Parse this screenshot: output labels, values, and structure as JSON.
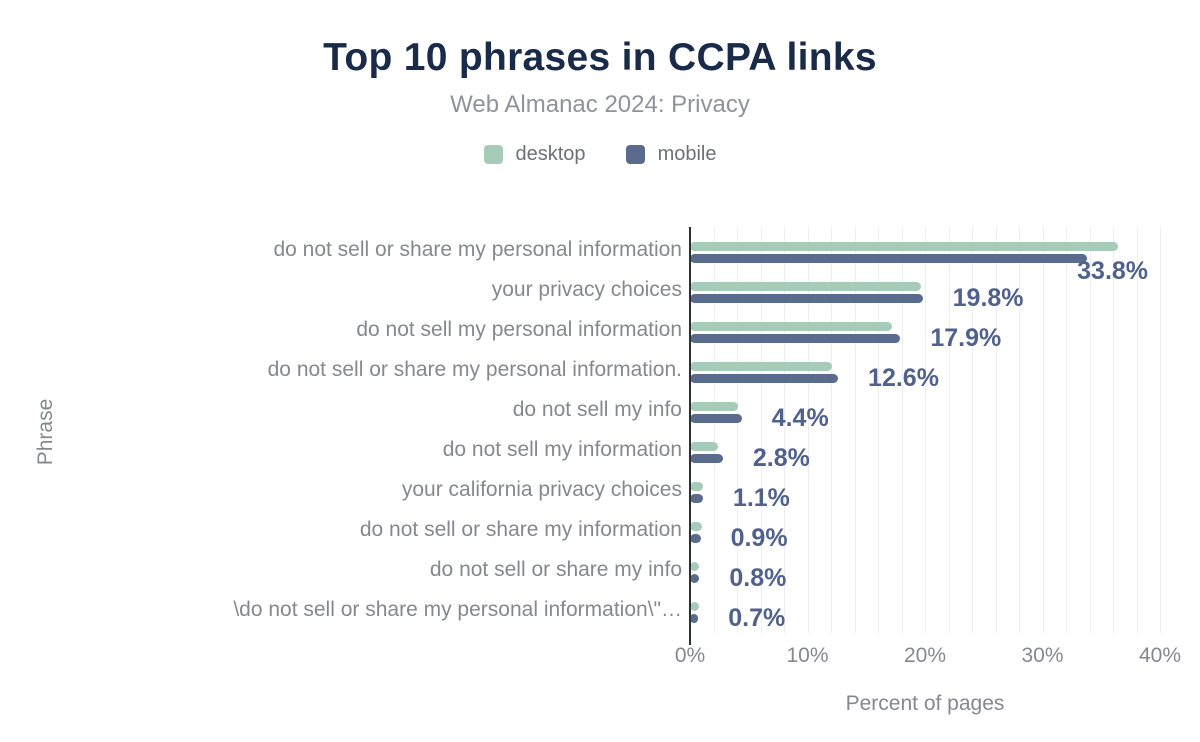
{
  "chart_data": {
    "type": "bar",
    "orientation": "horizontal",
    "title": "Top 10 phrases in CCPA links",
    "subtitle": "Web Almanac 2024: Privacy",
    "xlabel": "Percent of pages",
    "ylabel": "Phrase",
    "xlim": [
      0,
      40
    ],
    "x_ticks": [
      {
        "value": 0,
        "label": "0%"
      },
      {
        "value": 10,
        "label": "10%"
      },
      {
        "value": 20,
        "label": "20%"
      },
      {
        "value": 30,
        "label": "30%"
      },
      {
        "value": 40,
        "label": "40%"
      }
    ],
    "gridline_step_pct": 2,
    "grid": true,
    "legend_position": "top",
    "categories": [
      "do not sell or share my personal information",
      "your privacy choices",
      "do not sell my personal information",
      "do not sell or share my personal information.",
      "do not sell my info",
      "do not sell my information",
      "your california privacy choices",
      "do not sell or share my information",
      "do not sell or share my info",
      "\\do not sell or share my personal information\\\"…"
    ],
    "series": [
      {
        "name": "desktop",
        "color": "#a7cbb9",
        "values": [
          36.4,
          19.7,
          17.2,
          12.1,
          4.1,
          2.4,
          1.1,
          1.0,
          0.8,
          0.8
        ]
      },
      {
        "name": "mobile",
        "color": "#5a6b8e",
        "values": [
          33.8,
          19.8,
          17.9,
          12.6,
          4.4,
          2.8,
          1.1,
          0.9,
          0.8,
          0.7
        ]
      }
    ],
    "value_labels": [
      "33.8%",
      "19.8%",
      "17.9%",
      "12.6%",
      "4.4%",
      "2.8%",
      "1.1%",
      "0.9%",
      "0.8%",
      "0.7%"
    ],
    "value_labels_series": "mobile",
    "colors": {
      "title": "#1a2b49",
      "subtitle": "#8f949b",
      "legend_text": "#6d7278",
      "axis_text": "#85898f",
      "value_label": "#4f618c",
      "gridline": "#eeeef2",
      "axis_line": "#2b2f36",
      "background": "#ffffff"
    }
  }
}
